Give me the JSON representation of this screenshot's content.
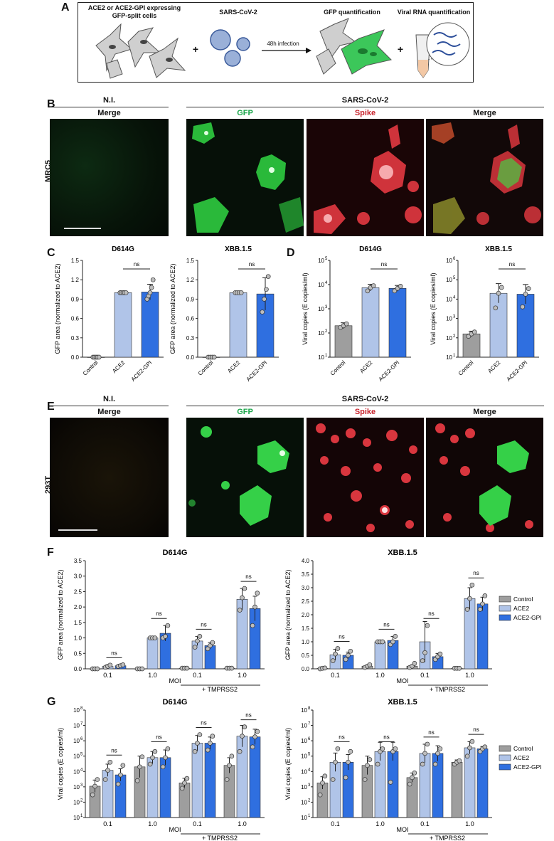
{
  "panels": {
    "A": {
      "letter": "A",
      "cells_label": "ACE2 or ACE2-GPI expressing\nGFP-split cells",
      "virus_label": "SARS-CoV-2",
      "arrow_label": "48h infection",
      "gfp_label": "GFP quantification",
      "rna_label": "Viral RNA quantification",
      "plus": "+"
    },
    "B": {
      "letter": "B",
      "ni": "N.I.",
      "sars": "SARS-CoV-2",
      "merge": "Merge",
      "gfp": "GFP",
      "spike": "Spike",
      "row_label": "MRC5"
    },
    "C": {
      "letter": "C"
    },
    "D": {
      "letter": "D"
    },
    "E": {
      "letter": "E",
      "ni": "N.I.",
      "sars": "SARS-CoV-2",
      "merge": "Merge",
      "gfp": "GFP",
      "spike": "Spike",
      "row_label": "293T"
    },
    "F": {
      "letter": "F"
    },
    "G": {
      "letter": "G"
    }
  },
  "colors": {
    "control": "#9e9e9e",
    "ace2": "#b0c4e8",
    "ace2gpi": "#2f6fe0",
    "gfp_label": "#1aa64a",
    "spike_label": "#c8232c"
  },
  "chart_data": [
    {
      "id": "C-D614G",
      "type": "bar",
      "title": "D614G",
      "ylabel": "GFP area (normalized to ACE2)",
      "categories": [
        "Control",
        "ACE2",
        "ACE2-GPI"
      ],
      "values": [
        0.0,
        1.0,
        1.01
      ],
      "errors": [
        0.0,
        0.0,
        0.12
      ],
      "points": [
        [
          0,
          0,
          0,
          0,
          0
        ],
        [
          1,
          1,
          1,
          1,
          1
        ],
        [
          0.9,
          0.95,
          1.0,
          1.08,
          1.2
        ]
      ],
      "ylim": [
        0,
        1.5
      ],
      "yticks": [
        "0.0",
        "0.3",
        "0.6",
        "0.9",
        "1.2",
        "1.5"
      ],
      "sig": [
        {
          "from": 1,
          "to": 2,
          "label": "ns"
        }
      ]
    },
    {
      "id": "C-XBB",
      "type": "bar",
      "title": "XBB.1.5",
      "ylabel": "GFP area (normalized to ACE2)",
      "categories": [
        "Control",
        "ACE2",
        "ACE2-GPI"
      ],
      "values": [
        0.0,
        1.0,
        0.98
      ],
      "errors": [
        0.0,
        0.0,
        0.25
      ],
      "points": [
        [
          0,
          0,
          0,
          0
        ],
        [
          1,
          1,
          1,
          1
        ],
        [
          0.7,
          0.9,
          1.05,
          1.25
        ]
      ],
      "ylim": [
        0,
        1.5
      ],
      "yticks": [
        "0.0",
        "0.3",
        "0.6",
        "0.9",
        "1.2",
        "1.5"
      ],
      "sig": [
        {
          "from": 1,
          "to": 2,
          "label": "ns"
        }
      ]
    },
    {
      "id": "D-D614G",
      "type": "bar",
      "title": "D614G",
      "ylabel": "Viral copies (E copies/ml)",
      "yscale": "log",
      "categories": [
        "Control",
        "ACE2",
        "ACE2-GPI"
      ],
      "values": [
        200,
        7500,
        7000
      ],
      "errors_log": [
        0.12,
        0.14,
        0.12
      ],
      "points": [
        [
          170,
          200,
          240
        ],
        [
          5500,
          7500,
          9000
        ],
        [
          5500,
          7000,
          8500
        ]
      ],
      "ylim": [
        10,
        100000
      ],
      "yticks": [
        "10",
        "10",
        "10",
        "10",
        "10"
      ],
      "ytick_exps": [
        "1",
        "2",
        "3",
        "4",
        "5"
      ],
      "sig": [
        {
          "from": 1,
          "to": 2,
          "label": "ns"
        }
      ]
    },
    {
      "id": "D-XBB",
      "type": "bar",
      "title": "XBB.1.5",
      "ylabel": "Viral copies (E copies/ml)",
      "yscale": "log",
      "categories": [
        "Control",
        "ACE2",
        "ACE2-GPI"
      ],
      "values": [
        160,
        20000,
        18000
      ],
      "errors_log": [
        0.14,
        0.5,
        0.5
      ],
      "points": [
        [
          120,
          160,
          200
        ],
        [
          3500,
          20000,
          40000
        ],
        [
          4000,
          18000,
          35000
        ]
      ],
      "ylim": [
        10,
        1000000
      ],
      "yticks": [
        "10",
        "10",
        "10",
        "10",
        "10",
        "10"
      ],
      "ytick_exps": [
        "1",
        "2",
        "3",
        "4",
        "5",
        "6"
      ],
      "sig": [
        {
          "from": 1,
          "to": 2,
          "label": "ns"
        }
      ]
    },
    {
      "id": "F-D614G",
      "type": "bar",
      "title": "D614G",
      "ylabel": "GFP area (normalized to ACE2)",
      "groups": [
        "0.1",
        "1.0",
        "0.1",
        "1.0"
      ],
      "xlabel": "MOI",
      "group_note": "+ TMPRSS2",
      "series": [
        {
          "name": "Control",
          "values": [
            0.0,
            0.0,
            0.02,
            0.02
          ],
          "errors": [
            0,
            0,
            0,
            0
          ],
          "points": [
            [
              0,
              0,
              0
            ],
            [
              0,
              0,
              0
            ],
            [
              0.02,
              0.02,
              0.02
            ],
            [
              0.02,
              0.02,
              0.02
            ]
          ]
        },
        {
          "name": "ACE2",
          "values": [
            0.08,
            1.0,
            0.9,
            2.25
          ],
          "errors": [
            0.05,
            0.05,
            0.15,
            0.35
          ],
          "points": [
            [
              0.05,
              0.08,
              0.12
            ],
            [
              1,
              1,
              1
            ],
            [
              0.7,
              0.9,
              1.05
            ],
            [
              1.9,
              2.3,
              2.6
            ]
          ]
        },
        {
          "name": "ACE2-GPI",
          "values": [
            0.1,
            1.15,
            0.75,
            1.95
          ],
          "errors": [
            0.05,
            0.25,
            0.1,
            0.4
          ],
          "points": [
            [
              0.08,
              0.1,
              0.13
            ],
            [
              1.0,
              1.05,
              1.4
            ],
            [
              0.65,
              0.75,
              0.85
            ],
            [
              1.4,
              2.0,
              2.45
            ]
          ]
        }
      ],
      "ylim": [
        0,
        3.5
      ],
      "yticks": [
        "0.0",
        "0.5",
        "1.0",
        "1.5",
        "2.0",
        "2.5",
        "3.0",
        "3.5"
      ],
      "sig_label": "ns"
    },
    {
      "id": "F-XBB",
      "type": "bar",
      "title": "XBB.1.5",
      "ylabel": "GFP area (normalized to ACE2)",
      "groups": [
        "0.1",
        "1.0",
        "0.1",
        "1.0"
      ],
      "xlabel": "MOI",
      "group_note": "+ TMPRSS2",
      "series": [
        {
          "name": "Control",
          "values": [
            0.02,
            0.1,
            0.1,
            0.02
          ],
          "errors": [
            0,
            0,
            0,
            0
          ],
          "points": [
            [
              0,
              0.02,
              0.03
            ],
            [
              0.05,
              0.1,
              0.15
            ],
            [
              0.05,
              0.1,
              0.2
            ],
            [
              0.02,
              0.02,
              0.02
            ]
          ]
        },
        {
          "name": "ACE2",
          "values": [
            0.52,
            1.0,
            1.0,
            2.6
          ],
          "errors": [
            0.2,
            0.05,
            0.75,
            0.4
          ],
          "points": [
            [
              0.3,
              0.55,
              0.75
            ],
            [
              1,
              1,
              1
            ],
            [
              0.3,
              0.6,
              1.6
            ],
            [
              2.2,
              2.6,
              3.1
            ]
          ]
        },
        {
          "name": "ACE2-GPI",
          "values": [
            0.5,
            1.05,
            0.45,
            2.4
          ],
          "errors": [
            0.12,
            0.15,
            0.12,
            0.25
          ],
          "points": [
            [
              0.35,
              0.5,
              0.65
            ],
            [
              0.9,
              1.0,
              1.2
            ],
            [
              0.35,
              0.45,
              0.55
            ],
            [
              2.2,
              2.4,
              2.7
            ]
          ]
        }
      ],
      "ylim": [
        0,
        4.0
      ],
      "yticks": [
        "0.0",
        "0.5",
        "1.0",
        "1.5",
        "2.0",
        "2.5",
        "3.0",
        "3.5",
        "4.0"
      ],
      "sig_label": "ns"
    },
    {
      "id": "G-D614G",
      "type": "bar",
      "title": "D614G",
      "ylabel": "Viral copies (E copies/ml)",
      "yscale": "log",
      "groups": [
        "0.1",
        "1.0",
        "0.1",
        "1.0"
      ],
      "xlabel": "MOI",
      "group_note": "+ TMPRSS2",
      "series": [
        {
          "name": "Control",
          "values": [
            1100,
            20000,
            1800,
            25000
          ],
          "errors_log": [
            0.4,
            0.7,
            0.3,
            0.5
          ],
          "points": [
            [
              300,
              1100,
              3000
            ],
            [
              2500,
              20000,
              90000
            ],
            [
              800,
              1800,
              3500
            ],
            [
              3000,
              25000,
              100000
            ]
          ]
        },
        {
          "name": "ACE2",
          "values": [
            12000,
            80000,
            700000,
            2000000
          ],
          "errors_log": [
            0.4,
            0.4,
            0.5,
            0.7
          ],
          "points": [
            [
              3000,
              12000,
              40000
            ],
            [
              30000,
              80000,
              200000
            ],
            [
              200000,
              700000,
              2500000
            ],
            [
              200000,
              2000000,
              8000000
            ]
          ]
        },
        {
          "name": "ACE2-GPI",
          "values": [
            6000,
            80000,
            700000,
            1800000
          ],
          "errors_log": [
            0.4,
            0.5,
            0.4,
            0.5
          ],
          "points": [
            [
              1500,
              6000,
              25000
            ],
            [
              20000,
              80000,
              300000
            ],
            [
              250000,
              700000,
              2000000
            ],
            [
              400000,
              1800000,
              4000000
            ]
          ]
        }
      ],
      "ylim": [
        10,
        100000000
      ],
      "yticks": [
        "10",
        "10",
        "10",
        "10",
        "10",
        "10",
        "10",
        "10"
      ],
      "ytick_exps": [
        "1",
        "2",
        "3",
        "4",
        "5",
        "6",
        "7",
        "8"
      ],
      "sig_label": "ns"
    },
    {
      "id": "G-XBB",
      "type": "bar",
      "title": "XBB.1.5",
      "ylabel": "Viral copies (E copies/ml)",
      "yscale": "log",
      "groups": [
        "0.1",
        "1.0",
        "0.1",
        "1.0"
      ],
      "xlabel": "MOI",
      "group_note": "+ TMPRSS2",
      "series": [
        {
          "name": "Control",
          "values": [
            1800,
            25000,
            4000,
            40000
          ],
          "errors_log": [
            0.4,
            0.6,
            0.3,
            0.15
          ],
          "points": [
            [
              300,
              1800,
              5000
            ],
            [
              3000,
              25000,
              60000
            ],
            [
              1500,
              4000,
              8000
            ],
            [
              30000,
              40000,
              50000
            ]
          ]
        },
        {
          "name": "ACE2",
          "values": [
            40000,
            200000,
            150000,
            350000
          ],
          "errors_log": [
            0.6,
            0.6,
            0.6,
            0.4
          ],
          "points": [
            [
              3000,
              40000,
              300000
            ],
            [
              30000,
              200000,
              300000
            ],
            [
              30000,
              150000,
              600000
            ],
            [
              100000,
              350000,
              900000
            ]
          ]
        },
        {
          "name": "ACE2-GPI",
          "values": [
            40000,
            200000,
            150000,
            300000
          ],
          "errors_log": [
            0.5,
            0.6,
            0.5,
            0.15
          ],
          "points": [
            [
              4000,
              40000,
              200000
            ],
            [
              2000,
              200000,
              300000
            ],
            [
              30000,
              150000,
              300000
            ],
            [
              200000,
              300000,
              400000
            ]
          ]
        }
      ],
      "ylim": [
        10,
        100000000
      ],
      "yticks": [
        "10",
        "10",
        "10",
        "10",
        "10",
        "10",
        "10",
        "10"
      ],
      "ytick_exps": [
        "1",
        "2",
        "3",
        "4",
        "5",
        "6",
        "7",
        "8"
      ],
      "sig_label": "ns"
    }
  ],
  "legend": {
    "items": [
      "Control",
      "ACE2",
      "ACE2-GPI"
    ]
  }
}
